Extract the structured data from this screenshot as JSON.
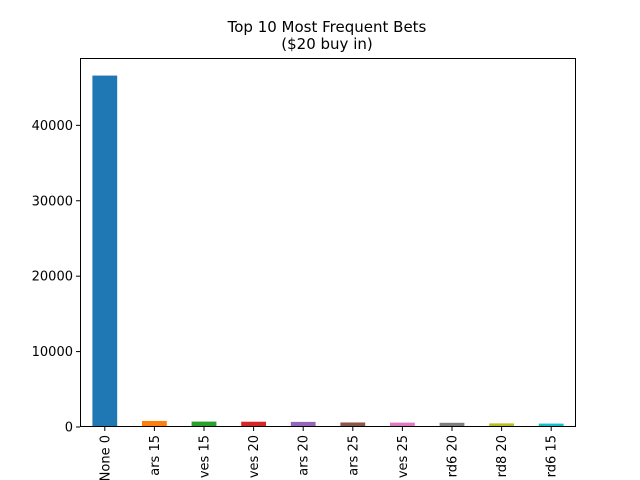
{
  "chart_data": {
    "type": "bar",
    "title": "Top 10 Most Frequent Bets",
    "subtitle": "($20 buy in)",
    "xlabel": "",
    "ylabel": "",
    "categories": [
      "None 0",
      "ars 15",
      "ves 15",
      "ves 20",
      "ars 20",
      "ars 25",
      "ves 25",
      "rd6 20",
      "rd8 20",
      "rd6 15"
    ],
    "values": [
      46600,
      800,
      720,
      700,
      680,
      600,
      580,
      560,
      480,
      450
    ],
    "colors": [
      "#1f77b4",
      "#ff7f0e",
      "#2ca02c",
      "#d62728",
      "#9467bd",
      "#8c564b",
      "#e377c2",
      "#7f7f7f",
      "#bcbd22",
      "#17becf"
    ],
    "ylim": [
      0,
      48930
    ],
    "yticks": [
      0,
      10000,
      20000,
      30000,
      40000
    ],
    "ytick_labels": [
      "0",
      "10000",
      "20000",
      "30000",
      "40000"
    ],
    "grid": false,
    "legend": "none"
  }
}
